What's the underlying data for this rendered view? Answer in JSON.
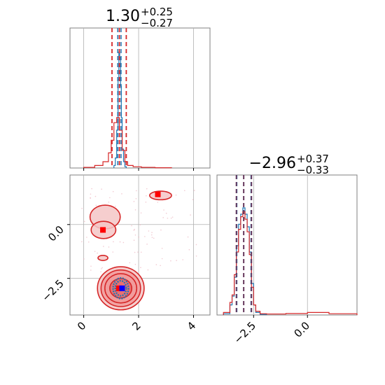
{
  "chart_data": {
    "type": "corner",
    "titles": [
      {
        "main": "1.30",
        "sup": "+0.25",
        "sub": "−0.27"
      },
      {
        "main": "−2.96",
        "sup": "+0.37",
        "sub": "−0.33"
      }
    ],
    "x_ticks": {
      "param1": {
        "values": [
          0,
          2,
          4
        ],
        "labels": [
          "0",
          "2",
          "4"
        ]
      },
      "param2": {
        "values": [
          -2.5,
          0.0
        ],
        "labels": [
          "−2.5",
          "0.0"
        ]
      }
    },
    "y_ticks": {
      "param2": {
        "values": [
          0.0,
          -2.5
        ],
        "labels": [
          "0.0",
          "−2.5"
        ]
      }
    },
    "ranges": {
      "param1": [
        -0.5,
        4.6
      ],
      "param2": [
        -4.2,
        2.3
      ]
    },
    "colors": {
      "red": "#d62728",
      "blue": "#1f77b4",
      "grid": "#b0b0b0",
      "axes": "#808080",
      "fill": "#f4c6c6",
      "marker_blue": "#0000ff",
      "marker_red": "#ff0000"
    },
    "grid": true,
    "hist1": {
      "quantiles_red": [
        1.03,
        1.3,
        1.55
      ],
      "quantiles_blue": [
        1.24,
        1.3,
        1.36
      ],
      "blue_edges": [
        1.1,
        1.15,
        1.2,
        1.25,
        1.28,
        1.31,
        1.34,
        1.37,
        1.4,
        1.45,
        1.5,
        1.55
      ],
      "blue_counts": [
        0.02,
        0.08,
        0.3,
        0.7,
        0.92,
        0.88,
        0.65,
        0.4,
        0.15,
        0.05,
        0.01
      ],
      "red_edges": [
        0.0,
        0.4,
        0.7,
        0.9,
        1.0,
        1.1,
        1.2,
        1.3,
        1.4,
        1.5,
        1.6,
        1.8,
        2.1,
        2.6,
        3.2
      ],
      "red_counts": [
        0.005,
        0.02,
        0.05,
        0.12,
        0.22,
        0.36,
        0.4,
        0.3,
        0.14,
        0.05,
        0.02,
        0.01,
        0.005,
        0.002
      ]
    },
    "hist2": {
      "quantiles_red": [
        -3.3,
        -2.96,
        -2.6
      ],
      "quantiles_blue": [
        -3.28,
        -2.96,
        -2.62
      ],
      "blue_edges": [
        -3.9,
        -3.6,
        -3.5,
        -3.4,
        -3.3,
        -3.2,
        -3.1,
        -3.0,
        -2.9,
        -2.8,
        -2.7,
        -2.6,
        -2.5,
        -2.4,
        -2.2,
        -1.9
      ],
      "blue_counts": [
        0.01,
        0.08,
        0.15,
        0.3,
        0.55,
        0.72,
        0.8,
        0.85,
        0.8,
        0.7,
        0.5,
        0.25,
        0.08,
        0.02,
        0.005
      ],
      "red_edges": [
        -3.9,
        -3.6,
        -3.5,
        -3.4,
        -3.3,
        -3.2,
        -3.1,
        -3.0,
        -2.9,
        -2.8,
        -2.7,
        -2.6,
        -2.5,
        -2.4,
        -2.2,
        -1.9,
        -1.0,
        0.0,
        1.0,
        2.3
      ],
      "red_counts": [
        0.02,
        0.1,
        0.16,
        0.32,
        0.5,
        0.68,
        0.78,
        0.82,
        0.76,
        0.66,
        0.48,
        0.22,
        0.08,
        0.03,
        0.01,
        0.008,
        0.012,
        0.02,
        0.01
      ]
    },
    "scatter": {
      "blue_marker": [
        1.4,
        -2.96
      ],
      "red_markers": [
        [
          1.28,
          -2.96
        ],
        [
          0.7,
          -0.25
        ],
        [
          2.7,
          1.4
        ]
      ],
      "red_blobs": [
        {
          "cx": 1.35,
          "cy": -2.96,
          "rx": [
            0.85,
            0.72,
            0.58,
            0.4
          ],
          "ry": [
            1.0,
            0.85,
            0.68,
            0.45
          ]
        },
        {
          "cx": 0.78,
          "cy": 0.35,
          "rx": [
            0.55
          ],
          "ry": [
            0.55
          ]
        },
        {
          "cx": 0.72,
          "cy": -0.25,
          "rx": [
            0.45
          ],
          "ry": [
            0.4
          ]
        },
        {
          "cx": 2.8,
          "cy": 1.35,
          "rx": [
            0.4
          ],
          "ry": [
            0.2
          ]
        },
        {
          "cx": 0.7,
          "cy": -1.55,
          "rx": [
            0.18
          ],
          "ry": [
            0.12
          ]
        }
      ],
      "blue_blob": {
        "cx": 1.35,
        "cy": -2.96,
        "rx": [
          0.28,
          0.2
        ],
        "ry": [
          0.48,
          0.35
        ]
      }
    }
  }
}
